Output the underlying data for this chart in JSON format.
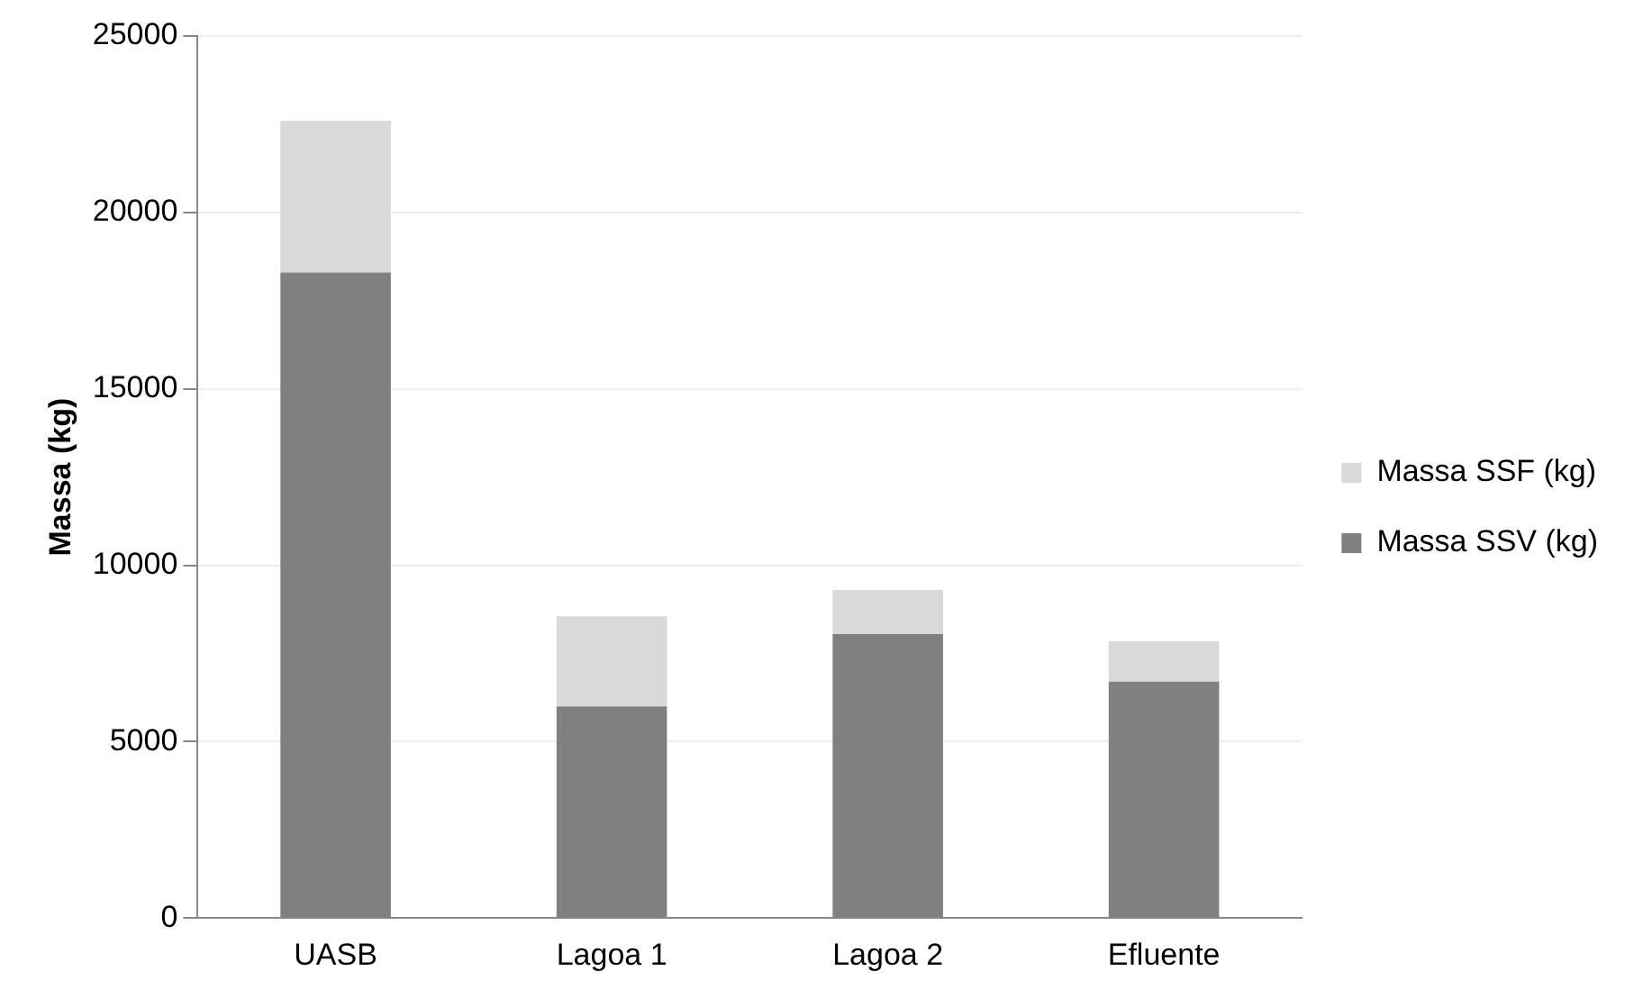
{
  "chart_data": {
    "type": "bar",
    "stacked": true,
    "ylabel": "Massa (kg)",
    "categories": [
      "UASB",
      "Lagoa 1",
      "Lagoa 2",
      "Efluente"
    ],
    "series": [
      {
        "name": "Massa SSV (kg)",
        "color": "#808080",
        "values": [
          18300,
          6000,
          8050,
          6700
        ]
      },
      {
        "name": "Massa SSF (kg)",
        "color": "#d9d9d9",
        "values": [
          4300,
          2550,
          1250,
          1150
        ]
      }
    ],
    "ylim": [
      0,
      25000
    ],
    "yticks": [
      0,
      5000,
      10000,
      15000,
      20000,
      25000
    ],
    "grid": "y",
    "legend": "right"
  }
}
